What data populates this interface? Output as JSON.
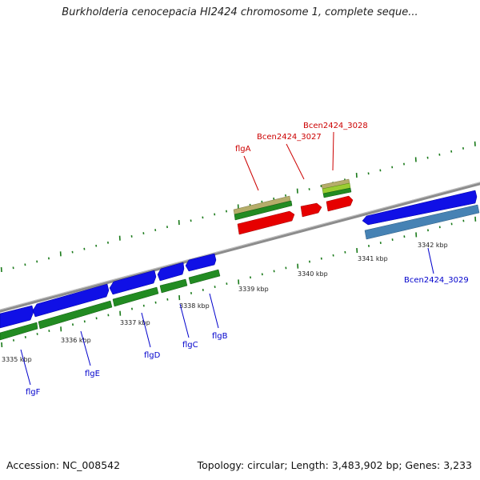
{
  "title": "Burkholderia cenocepacia HI2424 chromosome 1, complete seque...",
  "footer": {
    "accession": "Accession: NC_008542",
    "topology": "Topology: circular; Length: 3,483,902 bp; Genes: 3,233"
  },
  "colors": {
    "backbone": "#8c8c8c",
    "cds_forward": "#1010e6",
    "cds_reverse": "#228b22",
    "rna_or_other": "#e60000",
    "olive": "#b5ad6a",
    "steelblue": "#4682b4",
    "tick": "#1a7a1a",
    "label_blue": "#0000cc",
    "label_red": "#cc0000"
  },
  "ticks": [
    {
      "label": "3335 kbp"
    },
    {
      "label": "3336 kbp"
    },
    {
      "label": "3337 kbp"
    },
    {
      "label": "3338 kbp"
    },
    {
      "label": "3339 kbp"
    },
    {
      "label": "3340 kbp"
    },
    {
      "label": "3341 kbp"
    },
    {
      "label": "3342 kbp"
    }
  ],
  "genes_below": [
    {
      "name": "flgF"
    },
    {
      "name": "flgE"
    },
    {
      "name": "flgD"
    },
    {
      "name": "flgC"
    },
    {
      "name": "flgB"
    },
    {
      "name": "Bcen2424_3029"
    }
  ],
  "genes_above": [
    {
      "name": "flgA"
    },
    {
      "name": "Bcen2424_3027"
    },
    {
      "name": "Bcen2424_3028"
    }
  ]
}
